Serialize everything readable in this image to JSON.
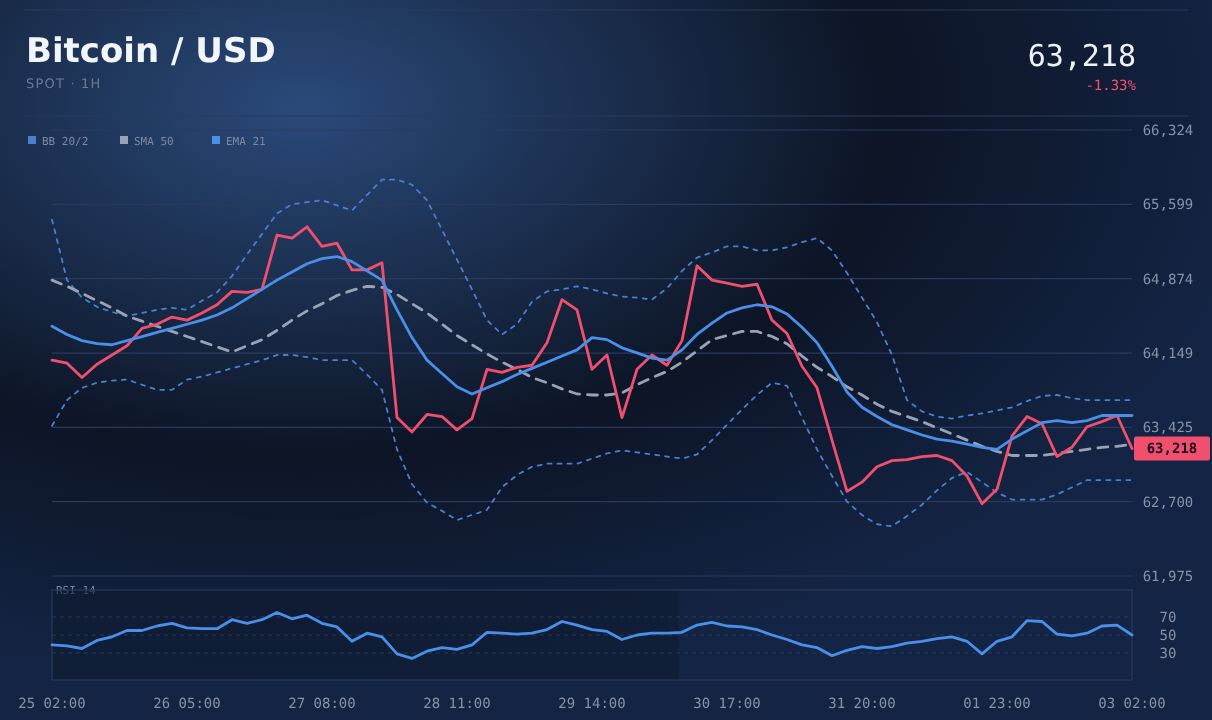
{
  "chart_data": [
    {
      "type": "line",
      "title": "Bitcoin / USD",
      "subtitle": "SPOT · 1H",
      "annotations": [
        "63,218",
        "-1.33%",
        {
          "text": "63,218",
          "y": 63218
        }
      ],
      "categories": [
        null,
        null,
        null,
        null,
        null,
        null,
        null,
        null,
        null,
        null,
        null,
        null,
        null,
        null,
        null,
        null,
        null,
        null,
        null,
        null,
        null,
        null,
        null,
        null,
        null,
        null,
        null,
        null,
        null,
        null,
        null,
        null,
        null,
        null,
        null,
        null,
        null,
        null,
        null,
        null,
        null,
        null,
        null,
        null,
        null,
        null,
        null,
        null,
        null,
        null,
        null,
        null,
        null,
        null,
        null,
        null,
        null,
        null,
        null,
        null,
        null,
        null,
        null,
        null,
        null,
        null,
        null,
        null,
        null,
        null,
        null,
        null,
        null
      ],
      "ylim": [
        61975,
        66324
      ],
      "yticks": [
        {
          "value": 61975,
          "label": "61,975"
        },
        {
          "value": 62700,
          "label": "62,700"
        },
        {
          "value": 63425,
          "label": "63,425"
        },
        {
          "value": 64149,
          "label": "64,149"
        },
        {
          "value": 64874,
          "label": "64,874"
        },
        {
          "value": 65599,
          "label": "65,599"
        },
        {
          "value": 66324,
          "label": "66,324"
        }
      ],
      "grid": "y",
      "legend": "top left",
      "tick_labels": "y",
      "series": [
        {
          "name": "BB 20/2",
          "color": "#4a7fd0",
          "line_style": "dotted",
          "values": [
            65450,
            64860,
            64690,
            64600,
            64550,
            64510,
            64540,
            64570,
            64590,
            64570,
            64660,
            64740,
            64900,
            65110,
            65310,
            65510,
            65600,
            65620,
            65640,
            65590,
            65540,
            65690,
            65840,
            65840,
            65790,
            65640,
            65350,
            65060,
            64770,
            64470,
            64330,
            64430,
            64650,
            64750,
            64770,
            64800,
            64770,
            64730,
            64700,
            64690,
            64670,
            64780,
            64950,
            65080,
            65130,
            65190,
            65190,
            65150,
            65150,
            65180,
            65230,
            65270,
            65150,
            64930,
            64690,
            64450,
            64130,
            63690,
            63580,
            63530,
            63510,
            63540,
            63560,
            63590,
            63620,
            63680,
            63730,
            63740,
            63710,
            63690,
            63690,
            63690,
            63690
          ]
        },
        {
          "color": "#4a7fd0",
          "line_style": "dotted",
          "values": [
            63440,
            63690,
            63810,
            63860,
            63880,
            63890,
            63840,
            63790,
            63790,
            63890,
            63920,
            63960,
            64000,
            64040,
            64080,
            64130,
            64130,
            64110,
            64080,
            64080,
            64080,
            63940,
            63790,
            63210,
            62870,
            62690,
            62610,
            62520,
            62570,
            62620,
            62840,
            62960,
            63040,
            63070,
            63070,
            63070,
            63120,
            63170,
            63200,
            63180,
            63160,
            63140,
            63120,
            63160,
            63300,
            63450,
            63600,
            63740,
            63860,
            63830,
            63520,
            63210,
            62950,
            62700,
            62570,
            62480,
            62460,
            62560,
            62670,
            62810,
            62930,
            62990,
            62890,
            62790,
            62720,
            62720,
            62720,
            62770,
            62840,
            62910,
            62910,
            62910,
            62910
          ]
        },
        {
          "name": "SMA 50",
          "color": "#9aa3b5",
          "line_style": "dashed",
          "values": [
            64860,
            64800,
            64730,
            64660,
            64590,
            64510,
            64460,
            64410,
            64360,
            64310,
            64260,
            64210,
            64160,
            64220,
            64280,
            64370,
            64470,
            64560,
            64630,
            64710,
            64760,
            64800,
            64790,
            64720,
            64630,
            64540,
            64430,
            64320,
            64230,
            64140,
            64060,
            63990,
            63910,
            63860,
            63800,
            63750,
            63740,
            63740,
            63760,
            63840,
            63910,
            63970,
            64060,
            64170,
            64280,
            64320,
            64360,
            64360,
            64310,
            64240,
            64120,
            64010,
            63920,
            63820,
            63740,
            63650,
            63580,
            63530,
            63480,
            63420,
            63360,
            63300,
            63240,
            63190,
            63150,
            63150,
            63150,
            63170,
            63190,
            63210,
            63230,
            63240,
            63260
          ]
        },
        {
          "color": "#f0506e",
          "line_style": "solid",
          "values": [
            64080,
            64050,
            63910,
            64040,
            64130,
            64220,
            64390,
            64430,
            64500,
            64470,
            64540,
            64620,
            64750,
            64740,
            64770,
            65300,
            65270,
            65380,
            65190,
            65220,
            64960,
            64960,
            65030,
            63520,
            63380,
            63550,
            63530,
            63400,
            63510,
            63990,
            63960,
            64010,
            64030,
            64250,
            64670,
            64570,
            63990,
            64130,
            63520,
            63990,
            64130,
            64030,
            64270,
            65000,
            64860,
            64830,
            64800,
            64820,
            64470,
            64340,
            64020,
            63810,
            63300,
            62800,
            62890,
            63040,
            63100,
            63110,
            63140,
            63150,
            63100,
            62950,
            62680,
            62820,
            63340,
            63530,
            63460,
            63140,
            63230,
            63430,
            63480,
            63540,
            63218
          ]
        },
        {
          "name": "EMA 21",
          "color": "#4a8fe8",
          "line_style": "solid",
          "values": [
            64410,
            64330,
            64270,
            64240,
            64230,
            64270,
            64310,
            64350,
            64390,
            64430,
            64470,
            64520,
            64590,
            64680,
            64770,
            64860,
            64940,
            65020,
            65070,
            65090,
            65040,
            64950,
            64860,
            64570,
            64300,
            64080,
            63950,
            63820,
            63750,
            63810,
            63870,
            63940,
            64000,
            64060,
            64120,
            64180,
            64300,
            64280,
            64200,
            64150,
            64100,
            64080,
            64180,
            64330,
            64440,
            64540,
            64590,
            64620,
            64600,
            64530,
            64400,
            64250,
            64020,
            63770,
            63620,
            63530,
            63450,
            63400,
            63350,
            63310,
            63290,
            63260,
            63230,
            63210,
            63310,
            63390,
            63470,
            63490,
            63470,
            63490,
            63540,
            63540,
            63540
          ]
        }
      ]
    },
    {
      "type": "line",
      "title": "RSI 14",
      "categories": [
        "25 02:00",
        null,
        null,
        null,
        null,
        null,
        null,
        null,
        null,
        "26 05:00",
        null,
        null,
        null,
        null,
        null,
        null,
        null,
        null,
        "27 08:00",
        null,
        null,
        null,
        null,
        null,
        null,
        null,
        null,
        "28 11:00",
        null,
        null,
        null,
        null,
        null,
        null,
        null,
        null,
        "29 14:00",
        null,
        null,
        null,
        null,
        null,
        null,
        null,
        null,
        "30 17:00",
        null,
        null,
        null,
        null,
        null,
        null,
        null,
        null,
        "31 20:00",
        null,
        null,
        null,
        null,
        null,
        null,
        null,
        null,
        "01 23:00",
        null,
        null,
        null,
        null,
        null,
        null,
        null,
        null,
        "03 02:00"
      ],
      "ylim": [
        0,
        100
      ],
      "yticks": [
        30,
        50,
        70
      ],
      "grid": "y",
      "series": [
        {
          "color": "#4a8fe8",
          "line_style": "solid",
          "values": [
            39,
            38,
            35,
            44,
            48,
            55,
            55,
            60,
            63,
            58,
            57,
            57,
            67,
            63,
            67,
            75,
            68,
            72,
            63,
            59,
            43,
            52,
            48,
            29,
            24,
            32,
            36,
            34,
            39,
            53,
            52,
            51,
            52,
            56,
            65,
            61,
            56,
            54,
            45,
            50,
            52,
            52,
            53,
            61,
            64,
            60,
            59,
            56,
            50,
            45,
            39,
            36,
            27,
            33,
            37,
            35,
            37,
            41,
            43,
            46,
            48,
            43,
            29,
            43,
            48,
            66,
            65,
            51,
            49,
            52,
            60,
            61,
            50
          ]
        }
      ]
    }
  ]
}
